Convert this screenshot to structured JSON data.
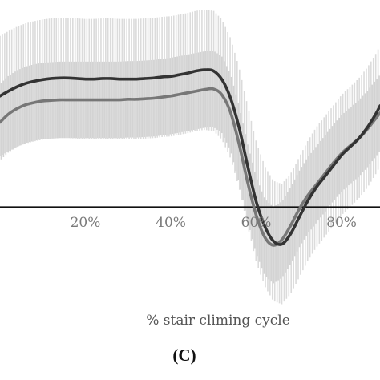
{
  "chart_data": {
    "type": "line",
    "panel_label": "(C)",
    "xlabel": "% stair climing cycle",
    "x_ticks": [
      "20%",
      "40%",
      "60%",
      "80%"
    ],
    "x_tick_values": [
      20,
      40,
      60,
      80
    ],
    "xlim": [
      0,
      89
    ],
    "ylim": [
      -1.2,
      3.2
    ],
    "zero_line": true,
    "grid": false,
    "legend": "none",
    "series": [
      {
        "color": "#333333",
        "band_color": "#cfcfcf",
        "x": [
          0,
          2,
          4,
          6,
          8,
          10,
          12,
          14,
          16,
          18,
          20,
          22,
          24,
          26,
          28,
          30,
          32,
          34,
          36,
          38,
          40,
          42,
          44,
          46,
          48,
          50,
          52,
          54,
          56,
          58,
          60,
          62,
          64,
          66,
          68,
          70,
          72,
          74,
          76,
          78,
          80,
          82,
          84,
          86,
          88,
          89
        ],
        "values": [
          2.03,
          2.12,
          2.2,
          2.26,
          2.3,
          2.33,
          2.35,
          2.36,
          2.36,
          2.35,
          2.34,
          2.34,
          2.35,
          2.35,
          2.34,
          2.34,
          2.34,
          2.35,
          2.36,
          2.38,
          2.39,
          2.42,
          2.45,
          2.49,
          2.51,
          2.49,
          2.33,
          1.99,
          1.45,
          0.75,
          0.1,
          -0.35,
          -0.62,
          -0.68,
          -0.5,
          -0.2,
          0.1,
          0.35,
          0.55,
          0.75,
          0.95,
          1.1,
          1.25,
          1.45,
          1.7,
          1.85
        ],
        "band": [
          1.1,
          1.1,
          1.1,
          1.1,
          1.1,
          1.1,
          1.1,
          1.1,
          1.1,
          1.1,
          1.1,
          1.1,
          1.1,
          1.1,
          1.1,
          1.1,
          1.1,
          1.1,
          1.1,
          1.1,
          1.1,
          1.1,
          1.1,
          1.1,
          1.1,
          1.1,
          1.1,
          1.1,
          1.1,
          1.1,
          1.1,
          1.1,
          1.1,
          1.1,
          1.1,
          1.1,
          1.1,
          1.1,
          1.1,
          1.1,
          1.1,
          1.1,
          1.1,
          1.1,
          1.1,
          1.1
        ]
      },
      {
        "color": "#777777",
        "band_color": "#cfcfcf",
        "x": [
          0,
          2,
          4,
          6,
          8,
          10,
          12,
          14,
          16,
          18,
          20,
          22,
          24,
          26,
          28,
          30,
          32,
          34,
          36,
          38,
          40,
          42,
          44,
          46,
          48,
          50,
          52,
          54,
          56,
          58,
          60,
          62,
          64,
          66,
          68,
          70,
          72,
          74,
          76,
          78,
          80,
          82,
          84,
          86,
          88,
          89
        ],
        "values": [
          1.55,
          1.7,
          1.8,
          1.87,
          1.91,
          1.94,
          1.95,
          1.96,
          1.96,
          1.96,
          1.96,
          1.96,
          1.96,
          1.96,
          1.96,
          1.97,
          1.97,
          1.98,
          1.99,
          2.01,
          2.03,
          2.06,
          2.09,
          2.12,
          2.15,
          2.16,
          2.05,
          1.73,
          1.15,
          0.45,
          -0.15,
          -0.55,
          -0.7,
          -0.6,
          -0.35,
          -0.05,
          0.2,
          0.4,
          0.6,
          0.8,
          0.98,
          1.12,
          1.25,
          1.42,
          1.62,
          1.72
        ],
        "band": [
          0.7,
          0.7,
          0.7,
          0.7,
          0.7,
          0.7,
          0.7,
          0.7,
          0.7,
          0.7,
          0.7,
          0.7,
          0.7,
          0.7,
          0.7,
          0.7,
          0.7,
          0.7,
          0.7,
          0.7,
          0.7,
          0.7,
          0.7,
          0.7,
          0.7,
          0.7,
          0.7,
          0.7,
          0.7,
          0.7,
          0.7,
          0.7,
          0.7,
          0.7,
          0.7,
          0.7,
          0.7,
          0.7,
          0.7,
          0.7,
          0.7,
          0.7,
          0.7,
          0.7,
          0.7,
          0.7
        ]
      }
    ]
  }
}
